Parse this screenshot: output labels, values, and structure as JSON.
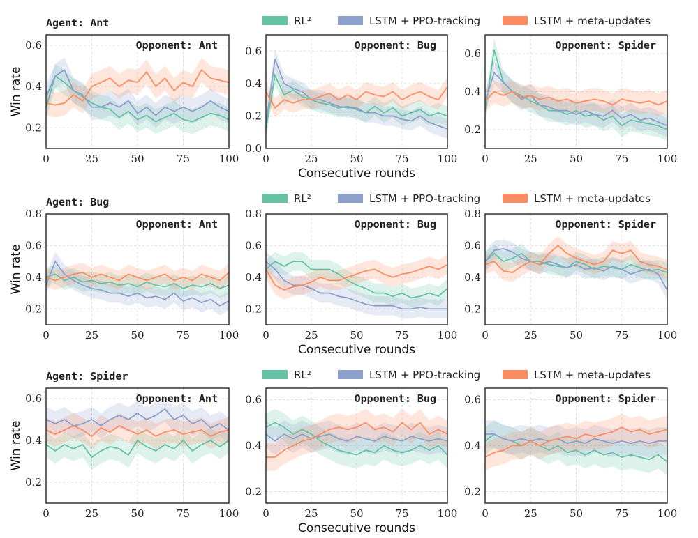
{
  "legend": {
    "items": [
      {
        "label": "RL²",
        "color": "#66c2a5"
      },
      {
        "label": "LSTM + PPO-tracking",
        "color": "#8da0cb"
      },
      {
        "label": "LSTM + meta-updates",
        "color": "#fc8d62"
      }
    ]
  },
  "ylabel": "Win rate",
  "xlabel": "Consecutive rounds",
  "chart_data": [
    {
      "type": "line",
      "agent": "Agent:  Ant",
      "opponent": "Opponent:  Ant",
      "ylim": [
        0.1,
        0.65
      ],
      "yticks": [
        0.2,
        0.4,
        0.6
      ],
      "xlim": [
        0,
        100
      ],
      "xticks": [
        0,
        25,
        50,
        75,
        100
      ],
      "grid": true,
      "x": [
        0,
        5,
        10,
        15,
        20,
        25,
        30,
        35,
        40,
        45,
        50,
        55,
        60,
        65,
        70,
        75,
        80,
        85,
        90,
        95,
        100
      ],
      "series": [
        {
          "name": "RL²",
          "values": [
            0.3,
            0.45,
            0.42,
            0.38,
            0.35,
            0.32,
            0.3,
            0.29,
            0.25,
            0.28,
            0.24,
            0.26,
            0.23,
            0.25,
            0.27,
            0.24,
            0.23,
            0.25,
            0.27,
            0.26,
            0.24
          ]
        },
        {
          "name": "LSTM + PPO-tracking",
          "values": [
            0.35,
            0.45,
            0.48,
            0.38,
            0.36,
            0.3,
            0.3,
            0.32,
            0.3,
            0.33,
            0.27,
            0.3,
            0.26,
            0.3,
            0.28,
            0.3,
            0.28,
            0.3,
            0.33,
            0.3,
            0.28
          ]
        },
        {
          "name": "LSTM + meta-updates",
          "values": [
            0.32,
            0.31,
            0.32,
            0.36,
            0.33,
            0.4,
            0.42,
            0.44,
            0.4,
            0.43,
            0.42,
            0.47,
            0.4,
            0.44,
            0.38,
            0.42,
            0.4,
            0.48,
            0.44,
            0.43,
            0.42
          ]
        }
      ]
    },
    {
      "type": "line",
      "agent": "",
      "opponent": "Opponent:  Bug",
      "ylim": [
        0.0,
        0.7
      ],
      "yticks": [
        0.0,
        0.2,
        0.4,
        0.6
      ],
      "xlim": [
        0,
        100
      ],
      "xticks": [
        0,
        25,
        50,
        75,
        100
      ],
      "grid": true,
      "show_xlabel": true,
      "x": [
        0,
        5,
        10,
        15,
        20,
        25,
        30,
        35,
        40,
        45,
        50,
        55,
        60,
        65,
        70,
        75,
        80,
        85,
        90,
        95,
        100
      ],
      "series": [
        {
          "name": "RL²",
          "values": [
            0.12,
            0.45,
            0.33,
            0.36,
            0.32,
            0.3,
            0.28,
            0.27,
            0.25,
            0.26,
            0.24,
            0.22,
            0.26,
            0.22,
            0.25,
            0.2,
            0.22,
            0.24,
            0.2,
            0.22,
            0.2
          ]
        },
        {
          "name": "LSTM + PPO-tracking",
          "values": [
            0.15,
            0.55,
            0.4,
            0.37,
            0.35,
            0.3,
            0.3,
            0.28,
            0.26,
            0.25,
            0.25,
            0.22,
            0.22,
            0.2,
            0.2,
            0.18,
            0.17,
            0.2,
            0.16,
            0.14,
            0.12
          ]
        },
        {
          "name": "LSTM + meta-updates",
          "values": [
            0.35,
            0.25,
            0.3,
            0.28,
            0.3,
            0.3,
            0.32,
            0.34,
            0.3,
            0.33,
            0.3,
            0.35,
            0.33,
            0.32,
            0.35,
            0.3,
            0.33,
            0.35,
            0.32,
            0.3,
            0.38
          ]
        }
      ]
    },
    {
      "type": "line",
      "agent": "",
      "opponent": "Opponent:  Spider",
      "ylim": [
        0.1,
        0.7
      ],
      "yticks": [
        0.2,
        0.4,
        0.6
      ],
      "xlim": [
        0,
        100
      ],
      "xticks": [
        0,
        25,
        50,
        75,
        100
      ],
      "grid": true,
      "x": [
        0,
        5,
        10,
        15,
        20,
        25,
        30,
        35,
        40,
        45,
        50,
        55,
        60,
        65,
        70,
        75,
        80,
        85,
        90,
        95,
        100
      ],
      "series": [
        {
          "name": "RL²",
          "values": [
            0.3,
            0.62,
            0.45,
            0.4,
            0.38,
            0.35,
            0.33,
            0.3,
            0.3,
            0.28,
            0.3,
            0.27,
            0.28,
            0.25,
            0.27,
            0.22,
            0.25,
            0.24,
            0.23,
            0.22,
            0.2
          ]
        },
        {
          "name": "LSTM + PPO-tracking",
          "values": [
            0.35,
            0.5,
            0.45,
            0.4,
            0.36,
            0.38,
            0.33,
            0.32,
            0.3,
            0.3,
            0.28,
            0.3,
            0.28,
            0.27,
            0.3,
            0.26,
            0.28,
            0.25,
            0.26,
            0.24,
            0.22
          ]
        },
        {
          "name": "LSTM + meta-updates",
          "values": [
            0.35,
            0.4,
            0.38,
            0.4,
            0.37,
            0.38,
            0.36,
            0.37,
            0.35,
            0.36,
            0.34,
            0.35,
            0.36,
            0.35,
            0.33,
            0.36,
            0.35,
            0.34,
            0.35,
            0.33,
            0.35
          ]
        }
      ]
    },
    {
      "type": "line",
      "agent": "Agent:  Bug",
      "opponent": "Opponent:  Ant",
      "ylim": [
        0.1,
        0.8
      ],
      "yticks": [
        0.2,
        0.4,
        0.6,
        0.8
      ],
      "xlim": [
        0,
        100
      ],
      "xticks": [
        0,
        25,
        50,
        75,
        100
      ],
      "grid": true,
      "x": [
        0,
        5,
        10,
        15,
        20,
        25,
        30,
        35,
        40,
        45,
        50,
        55,
        60,
        65,
        70,
        75,
        80,
        85,
        90,
        95,
        100
      ],
      "series": [
        {
          "name": "RL²",
          "values": [
            0.4,
            0.42,
            0.38,
            0.4,
            0.37,
            0.38,
            0.36,
            0.37,
            0.35,
            0.36,
            0.34,
            0.37,
            0.35,
            0.34,
            0.36,
            0.33,
            0.35,
            0.34,
            0.36,
            0.33,
            0.35
          ]
        },
        {
          "name": "LSTM + PPO-tracking",
          "values": [
            0.35,
            0.5,
            0.42,
            0.38,
            0.35,
            0.33,
            0.32,
            0.3,
            0.3,
            0.28,
            0.3,
            0.27,
            0.28,
            0.26,
            0.3,
            0.25,
            0.27,
            0.24,
            0.26,
            0.22,
            0.25
          ]
        },
        {
          "name": "LSTM + meta-updates",
          "values": [
            0.4,
            0.38,
            0.4,
            0.42,
            0.43,
            0.4,
            0.42,
            0.4,
            0.38,
            0.42,
            0.4,
            0.38,
            0.4,
            0.42,
            0.38,
            0.4,
            0.38,
            0.42,
            0.4,
            0.38,
            0.43
          ]
        }
      ]
    },
    {
      "type": "line",
      "agent": "",
      "opponent": "Opponent:  Bug",
      "ylim": [
        0.1,
        0.8
      ],
      "yticks": [
        0.2,
        0.4,
        0.6,
        0.8
      ],
      "xlim": [
        0,
        100
      ],
      "xticks": [
        0,
        25,
        50,
        75,
        100
      ],
      "grid": true,
      "show_xlabel": true,
      "x": [
        0,
        5,
        10,
        15,
        20,
        25,
        30,
        35,
        40,
        45,
        50,
        55,
        60,
        65,
        70,
        75,
        80,
        85,
        90,
        95,
        100
      ],
      "series": [
        {
          "name": "RL²",
          "values": [
            0.45,
            0.5,
            0.47,
            0.5,
            0.5,
            0.45,
            0.45,
            0.45,
            0.42,
            0.38,
            0.35,
            0.33,
            0.3,
            0.3,
            0.28,
            0.3,
            0.27,
            0.28,
            0.3,
            0.28,
            0.33
          ]
        },
        {
          "name": "LSTM + PPO-tracking",
          "values": [
            0.5,
            0.45,
            0.38,
            0.35,
            0.35,
            0.33,
            0.3,
            0.3,
            0.28,
            0.27,
            0.25,
            0.23,
            0.22,
            0.22,
            0.22,
            0.2,
            0.2,
            0.21,
            0.2,
            0.2,
            0.2
          ]
        },
        {
          "name": "LSTM + meta-updates",
          "values": [
            0.45,
            0.35,
            0.32,
            0.34,
            0.35,
            0.37,
            0.4,
            0.38,
            0.38,
            0.4,
            0.42,
            0.44,
            0.45,
            0.42,
            0.4,
            0.42,
            0.43,
            0.45,
            0.47,
            0.45,
            0.48
          ]
        }
      ]
    },
    {
      "type": "line",
      "agent": "",
      "opponent": "Opponent:  Spider",
      "ylim": [
        0.1,
        0.8
      ],
      "yticks": [
        0.2,
        0.4,
        0.6,
        0.8
      ],
      "xlim": [
        0,
        100
      ],
      "xticks": [
        0,
        25,
        50,
        75,
        100
      ],
      "grid": true,
      "x": [
        0,
        5,
        10,
        15,
        20,
        25,
        30,
        35,
        40,
        45,
        50,
        55,
        60,
        65,
        70,
        75,
        80,
        85,
        90,
        95,
        100
      ],
      "series": [
        {
          "name": "RL²",
          "values": [
            0.5,
            0.55,
            0.5,
            0.52,
            0.55,
            0.5,
            0.5,
            0.48,
            0.47,
            0.46,
            0.5,
            0.48,
            0.45,
            0.47,
            0.46,
            0.45,
            0.48,
            0.46,
            0.44,
            0.45,
            0.43
          ]
        },
        {
          "name": "LSTM + PPO-tracking",
          "values": [
            0.5,
            0.57,
            0.58,
            0.56,
            0.52,
            0.5,
            0.48,
            0.5,
            0.48,
            0.46,
            0.48,
            0.45,
            0.46,
            0.44,
            0.47,
            0.45,
            0.42,
            0.44,
            0.45,
            0.42,
            0.32
          ]
        },
        {
          "name": "LSTM + meta-updates",
          "values": [
            0.48,
            0.5,
            0.44,
            0.43,
            0.47,
            0.5,
            0.48,
            0.55,
            0.6,
            0.55,
            0.52,
            0.5,
            0.48,
            0.5,
            0.57,
            0.55,
            0.57,
            0.5,
            0.48,
            0.47,
            0.45
          ]
        }
      ]
    },
    {
      "type": "line",
      "agent": "Agent:  Spider",
      "opponent": "Opponent:  Ant",
      "ylim": [
        0.1,
        0.65
      ],
      "yticks": [
        0.2,
        0.4,
        0.6
      ],
      "xlim": [
        0,
        100
      ],
      "xticks": [
        0,
        25,
        50,
        75,
        100
      ],
      "grid": true,
      "x": [
        0,
        5,
        10,
        15,
        20,
        25,
        30,
        35,
        40,
        45,
        50,
        55,
        60,
        65,
        70,
        75,
        80,
        85,
        90,
        95,
        100
      ],
      "series": [
        {
          "name": "RL²",
          "values": [
            0.38,
            0.35,
            0.38,
            0.36,
            0.38,
            0.32,
            0.35,
            0.37,
            0.36,
            0.33,
            0.4,
            0.37,
            0.35,
            0.38,
            0.36,
            0.4,
            0.35,
            0.38,
            0.4,
            0.37,
            0.4
          ]
        },
        {
          "name": "LSTM + PPO-tracking",
          "values": [
            0.5,
            0.48,
            0.5,
            0.47,
            0.48,
            0.5,
            0.47,
            0.5,
            0.52,
            0.5,
            0.53,
            0.5,
            0.52,
            0.55,
            0.5,
            0.52,
            0.48,
            0.5,
            0.46,
            0.48,
            0.45
          ]
        },
        {
          "name": "LSTM + meta-updates",
          "values": [
            0.45,
            0.43,
            0.45,
            0.47,
            0.45,
            0.42,
            0.46,
            0.44,
            0.47,
            0.45,
            0.43,
            0.45,
            0.42,
            0.44,
            0.45,
            0.43,
            0.44,
            0.45,
            0.42,
            0.44,
            0.45
          ]
        }
      ]
    },
    {
      "type": "line",
      "agent": "",
      "opponent": "Opponent:  Bug",
      "ylim": [
        0.15,
        0.65
      ],
      "yticks": [
        0.2,
        0.4,
        0.6
      ],
      "xlim": [
        0,
        100
      ],
      "xticks": [
        0,
        25,
        50,
        75,
        100
      ],
      "grid": true,
      "show_xlabel": true,
      "x": [
        0,
        5,
        10,
        15,
        20,
        25,
        30,
        35,
        40,
        45,
        50,
        55,
        60,
        65,
        70,
        75,
        80,
        85,
        90,
        95,
        100
      ],
      "series": [
        {
          "name": "RL²",
          "values": [
            0.48,
            0.5,
            0.48,
            0.45,
            0.47,
            0.45,
            0.42,
            0.4,
            0.38,
            0.37,
            0.36,
            0.38,
            0.37,
            0.4,
            0.38,
            0.37,
            0.38,
            0.4,
            0.38,
            0.4,
            0.36
          ]
        },
        {
          "name": "LSTM + PPO-tracking",
          "values": [
            0.45,
            0.42,
            0.45,
            0.43,
            0.45,
            0.43,
            0.44,
            0.45,
            0.43,
            0.42,
            0.44,
            0.43,
            0.42,
            0.44,
            0.43,
            0.42,
            0.44,
            0.43,
            0.42,
            0.43,
            0.42
          ]
        },
        {
          "name": "LSTM + meta-updates",
          "values": [
            0.35,
            0.35,
            0.38,
            0.4,
            0.42,
            0.43,
            0.45,
            0.47,
            0.48,
            0.47,
            0.48,
            0.5,
            0.47,
            0.48,
            0.46,
            0.5,
            0.47,
            0.5,
            0.45,
            0.47,
            0.45
          ]
        }
      ]
    },
    {
      "type": "line",
      "agent": "",
      "opponent": "Opponent:  Spider",
      "ylim": [
        0.15,
        0.65
      ],
      "yticks": [
        0.2,
        0.4,
        0.6
      ],
      "xlim": [
        0,
        100
      ],
      "xticks": [
        0,
        25,
        50,
        75,
        100
      ],
      "grid": true,
      "x": [
        0,
        5,
        10,
        15,
        20,
        25,
        30,
        35,
        40,
        45,
        50,
        55,
        60,
        65,
        70,
        75,
        80,
        85,
        90,
        95,
        100
      ],
      "series": [
        {
          "name": "RL²",
          "values": [
            0.42,
            0.45,
            0.43,
            0.42,
            0.4,
            0.42,
            0.4,
            0.38,
            0.4,
            0.37,
            0.38,
            0.36,
            0.38,
            0.36,
            0.37,
            0.35,
            0.36,
            0.35,
            0.34,
            0.36,
            0.33
          ]
        },
        {
          "name": "LSTM + PPO-tracking",
          "values": [
            0.45,
            0.45,
            0.43,
            0.42,
            0.43,
            0.42,
            0.43,
            0.42,
            0.43,
            0.41,
            0.42,
            0.41,
            0.43,
            0.42,
            0.41,
            0.42,
            0.41,
            0.42,
            0.41,
            0.42,
            0.42
          ]
        },
        {
          "name": "LSTM + meta-updates",
          "values": [
            0.35,
            0.37,
            0.38,
            0.4,
            0.4,
            0.42,
            0.4,
            0.42,
            0.43,
            0.44,
            0.43,
            0.45,
            0.44,
            0.45,
            0.46,
            0.48,
            0.46,
            0.47,
            0.45,
            0.46,
            0.47
          ]
        }
      ]
    }
  ]
}
